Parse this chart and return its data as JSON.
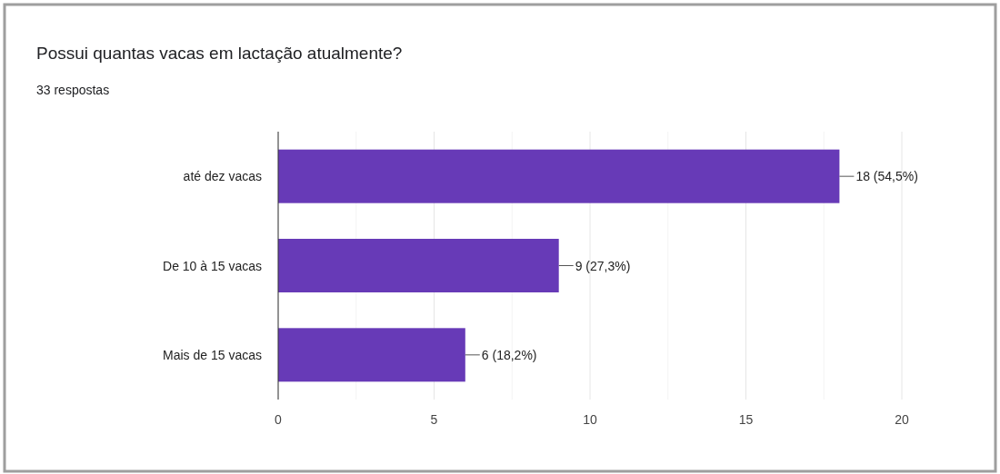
{
  "chart_data": {
    "type": "bar",
    "orientation": "horizontal",
    "title": "Possui quantas vacas em lactação atualmente?",
    "subtitle": "33 respostas",
    "categories": [
      "até dez vacas",
      "De 10 à 15 vacas",
      "Mais de 15 vacas"
    ],
    "values": [
      18,
      9,
      6
    ],
    "color": "#673ab7",
    "value_labels": [
      "18 (54,5%)",
      "9 (27,3%)",
      "6 (18,2%)"
    ],
    "xlim": [
      0,
      20
    ],
    "xticks": [
      0,
      {
        "value": 2.5,
        "label": null
      },
      5,
      {
        "value": 7.5,
        "label": null
      },
      10,
      {
        "value": 12.5,
        "label": null
      },
      15,
      {
        "value": 17.5,
        "label": null
      },
      20
    ],
    "grid": "x"
  }
}
